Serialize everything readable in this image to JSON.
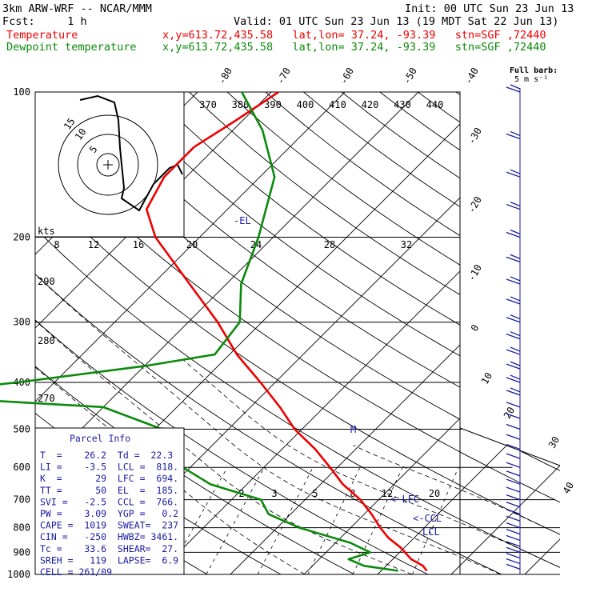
{
  "header": {
    "model": "3km ARW-WRF -- NCAR/MMM",
    "init": "Init: 00 UTC Sun 23 Jun 13",
    "fcst": "Fcst:     1 h",
    "valid": "Valid: 01 UTC Sun 23 Jun 13 (19 MDT Sat 22 Jun 13)",
    "temp_label": "Temperature",
    "temp_info": "x,y=613.72,435.58   lat,lon= 37.24, -93.39   stn=SGF ,72440",
    "dew_label": "Dewpoint temperature",
    "dew_info": "x,y=613.72,435.58   lat,lon= 37.24, -93.39   stn=SGF ,72440"
  },
  "barb_key": {
    "line1": "Full barb:",
    "line2": "5 m s⁻¹"
  },
  "hodograph": {
    "units": "kts",
    "ring_labels": [
      "5",
      "10",
      "15"
    ]
  },
  "parcel_info": {
    "title": "Parcel Info",
    "rows": [
      "T  =    26.2  Td =  22.3",
      "LI =    -3.5  LCL =  818.",
      "K  =      29  LFC =  694.",
      "TT =      50  EL  =  185.",
      "SVI =   -2.5  CCL =  766.",
      "PW =    3.09  YGP =   0.2",
      "CAPE =  1019  SWEAT=  237",
      "CIN =   -250  HWBZ= 3461.",
      "Tc =    33.6  SHEAR=  27.",
      "SREH =   119  LAPSE=  6.9",
      "CELL = 261/09"
    ]
  },
  "level_markers": {
    "el": "-EL",
    "lfc": "LFC",
    "ccl": "CCL",
    "lcl": "LCL",
    "m": "M"
  },
  "colors": {
    "temperature": "#ee0000",
    "dewpoint": "#0a8a0a",
    "grid": "#000000",
    "barbs": "#1a1aa0",
    "text_blue": "#1a1aa0"
  },
  "chart_data": {
    "type": "line",
    "title": "",
    "ylabel": "",
    "y_scale": "log (pressure, hPa)",
    "pressure_ticks": [
      100,
      200,
      300,
      400,
      500,
      600,
      700,
      800,
      900,
      1000
    ],
    "pressure_tick_labels": [
      "100",
      "200",
      "300",
      "400",
      "500",
      "600",
      "700",
      "800",
      "900",
      "1000"
    ],
    "isotherm_labels": [
      "-80",
      "-70",
      "-60",
      "-50",
      "-40",
      "-30",
      "-20",
      "-10",
      "0",
      "10",
      "20",
      "30",
      "40"
    ],
    "theta_labels": [
      "370",
      "380",
      "390",
      "400",
      "410",
      "420",
      "430",
      "440"
    ],
    "dry_adiabat_side_labels": [
      "290",
      "280",
      "270"
    ],
    "mixing_ratio_labels": [
      "8",
      "12",
      "16",
      "20",
      "24",
      "28",
      "32"
    ],
    "mixing_ratio_low_labels": [
      "2",
      "3",
      "5",
      "8",
      "12",
      "20"
    ],
    "series": [
      {
        "name": "Temperature",
        "points": [
          [
            983,
            26.2
          ],
          [
            960,
            25
          ],
          [
            930,
            22.5
          ],
          [
            880,
            19.5
          ],
          [
            840,
            16.5
          ],
          [
            800,
            14
          ],
          [
            750,
            11
          ],
          [
            700,
            7.5
          ],
          [
            650,
            3
          ],
          [
            600,
            -1
          ],
          [
            550,
            -5.5
          ],
          [
            500,
            -11
          ],
          [
            450,
            -16
          ],
          [
            400,
            -22
          ],
          [
            350,
            -29
          ],
          [
            300,
            -36
          ],
          [
            250,
            -45
          ],
          [
            200,
            -56
          ],
          [
            175,
            -61
          ],
          [
            150,
            -63
          ],
          [
            130,
            -63
          ],
          [
            115,
            -61
          ],
          [
            100,
            -59
          ]
        ]
      },
      {
        "name": "Dewpoint temperature",
        "points": [
          [
            983,
            22.3
          ],
          [
            960,
            17
          ],
          [
            930,
            14
          ],
          [
            900,
            16
          ],
          [
            860,
            12
          ],
          [
            800,
            3
          ],
          [
            750,
            -3
          ],
          [
            700,
            -6
          ],
          [
            650,
            -15
          ],
          [
            600,
            -21
          ],
          [
            550,
            -26
          ],
          [
            500,
            -29
          ],
          [
            450,
            -40
          ],
          [
            425,
            -70
          ],
          [
            400,
            -55
          ],
          [
            370,
            -40
          ],
          [
            350,
            -32
          ],
          [
            300,
            -33
          ],
          [
            250,
            -38
          ],
          [
            200,
            -42
          ],
          [
            150,
            -48
          ],
          [
            120,
            -56
          ],
          [
            100,
            -64
          ]
        ]
      }
    ]
  }
}
